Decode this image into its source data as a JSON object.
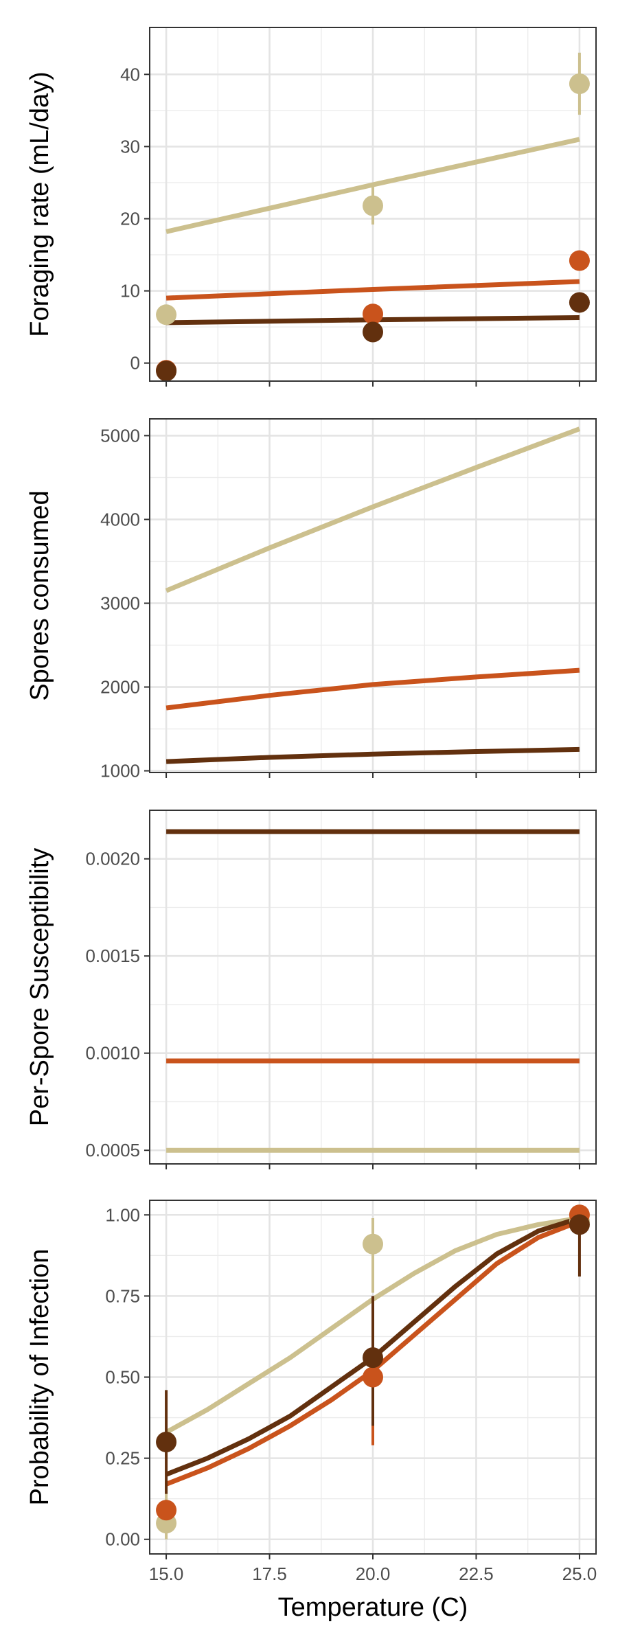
{
  "colors": {
    "light": "#CCC08E",
    "orange": "#C9531C",
    "dark": "#62300E"
  },
  "xaxis": {
    "label": "Temperature (C)",
    "lim": [
      14.6,
      25.4
    ],
    "ticks": [
      15,
      17.5,
      20,
      22.5,
      25
    ],
    "tick_labels": [
      "15.0",
      "17.5",
      "20.0",
      "22.5",
      "25.0"
    ]
  },
  "chart_data": [
    {
      "type": "line",
      "ylabel": "Foraging rate (mL/day)",
      "ylim": [
        -2.5,
        46.5
      ],
      "yticks": [
        0,
        10,
        20,
        30,
        40
      ],
      "ytick_labels": [
        "0",
        "10",
        "20",
        "30",
        "40"
      ],
      "grid": true,
      "x": [
        15,
        20,
        25
      ],
      "series": [
        {
          "color": "light",
          "line": [
            [
              15,
              18.2
            ],
            [
              20,
              24.7
            ],
            [
              25,
              31.0
            ]
          ],
          "points": [
            [
              15,
              6.7
            ],
            [
              20,
              21.8
            ],
            [
              25,
              38.7
            ]
          ],
          "errors": [
            [
              15,
              5.7,
              7.7
            ],
            [
              20,
              19.2,
              24.4
            ],
            [
              25,
              34.4,
              43.0
            ]
          ]
        },
        {
          "color": "orange",
          "line": [
            [
              15,
              9.0
            ],
            [
              20,
              10.2
            ],
            [
              25,
              11.3
            ]
          ],
          "points": [
            [
              15,
              -1.0
            ],
            [
              20,
              6.8
            ],
            [
              25,
              14.2
            ]
          ],
          "errors": []
        },
        {
          "color": "dark",
          "line": [
            [
              15,
              5.6
            ],
            [
              20,
              6.0
            ],
            [
              25,
              6.3
            ]
          ],
          "points": [
            [
              15,
              -1.1
            ],
            [
              20,
              4.3
            ],
            [
              25,
              8.4
            ]
          ],
          "errors": []
        }
      ]
    },
    {
      "type": "line",
      "ylabel": "Spores consumed",
      "ylim": [
        980,
        5200
      ],
      "yticks": [
        1000,
        2000,
        3000,
        4000,
        5000
      ],
      "ytick_labels": [
        "1000",
        "2000",
        "3000",
        "4000",
        "5000"
      ],
      "grid": true,
      "x": [
        15,
        20,
        25
      ],
      "series": [
        {
          "color": "light",
          "line": [
            [
              15,
              3150
            ],
            [
              17.5,
              3660
            ],
            [
              20,
              4150
            ],
            [
              22.5,
              4620
            ],
            [
              25,
              5080
            ]
          ],
          "points": [],
          "errors": []
        },
        {
          "color": "orange",
          "line": [
            [
              15,
              1750
            ],
            [
              17.5,
              1900
            ],
            [
              20,
              2030
            ],
            [
              22.5,
              2120
            ],
            [
              25,
              2200
            ]
          ],
          "points": [],
          "errors": []
        },
        {
          "color": "dark",
          "line": [
            [
              15,
              1110
            ],
            [
              17.5,
              1160
            ],
            [
              20,
              1200
            ],
            [
              22.5,
              1230
            ],
            [
              25,
              1255
            ]
          ],
          "points": [],
          "errors": []
        }
      ]
    },
    {
      "type": "line",
      "ylabel": "Per-Spore Susceptibility",
      "ylim": [
        0.00043,
        0.00225
      ],
      "yticks": [
        0.0005,
        0.001,
        0.0015,
        0.002
      ],
      "ytick_labels": [
        "0.0005",
        "0.0010",
        "0.0015",
        "0.0020"
      ],
      "grid": true,
      "x": [
        15,
        20,
        25
      ],
      "series": [
        {
          "color": "dark",
          "line": [
            [
              15,
              0.00214
            ],
            [
              25,
              0.00214
            ]
          ],
          "points": [],
          "errors": []
        },
        {
          "color": "orange",
          "line": [
            [
              15,
              0.00096
            ],
            [
              25,
              0.00096
            ]
          ],
          "points": [],
          "errors": []
        },
        {
          "color": "light",
          "line": [
            [
              15,
              0.0005
            ],
            [
              25,
              0.0005
            ]
          ],
          "points": [],
          "errors": []
        }
      ]
    },
    {
      "type": "line",
      "ylabel": "Probability of Infection",
      "ylim": [
        -0.045,
        1.045
      ],
      "yticks": [
        0,
        0.25,
        0.5,
        0.75,
        1
      ],
      "ytick_labels": [
        "0.00",
        "0.25",
        "0.50",
        "0.75",
        "1.00"
      ],
      "grid": true,
      "x": [
        15,
        20,
        25
      ],
      "series": [
        {
          "color": "light",
          "line": [
            [
              15,
              0.33
            ],
            [
              16,
              0.4
            ],
            [
              17,
              0.48
            ],
            [
              18,
              0.56
            ],
            [
              19,
              0.65
            ],
            [
              20,
              0.74
            ],
            [
              21,
              0.82
            ],
            [
              22,
              0.89
            ],
            [
              23,
              0.94
            ],
            [
              24,
              0.97
            ],
            [
              25,
              0.99
            ]
          ],
          "points": [
            [
              15,
              0.05
            ],
            [
              20,
              0.91
            ],
            [
              25,
              0.98
            ]
          ],
          "errors": [
            [
              15,
              0.0,
              0.18
            ],
            [
              20,
              0.76,
              0.99
            ]
          ]
        },
        {
          "color": "orange",
          "line": [
            [
              15,
              0.17
            ],
            [
              16,
              0.22
            ],
            [
              17,
              0.28
            ],
            [
              18,
              0.35
            ],
            [
              19,
              0.43
            ],
            [
              20,
              0.52
            ],
            [
              21,
              0.63
            ],
            [
              22,
              0.74
            ],
            [
              23,
              0.85
            ],
            [
              24,
              0.93
            ],
            [
              25,
              0.98
            ]
          ],
          "points": [
            [
              15,
              0.09
            ],
            [
              20,
              0.5
            ],
            [
              25,
              1.0
            ]
          ],
          "errors": [
            [
              20,
              0.29,
              0.7
            ]
          ]
        },
        {
          "color": "dark",
          "line": [
            [
              15,
              0.2
            ],
            [
              16,
              0.25
            ],
            [
              17,
              0.31
            ],
            [
              18,
              0.38
            ],
            [
              19,
              0.47
            ],
            [
              20,
              0.56
            ],
            [
              21,
              0.67
            ],
            [
              22,
              0.78
            ],
            [
              23,
              0.88
            ],
            [
              24,
              0.95
            ],
            [
              25,
              0.99
            ]
          ],
          "points": [
            [
              15,
              0.3
            ],
            [
              20,
              0.56
            ],
            [
              25,
              0.97
            ]
          ],
          "errors": [
            [
              15,
              0.14,
              0.46
            ],
            [
              20,
              0.35,
              0.75
            ],
            [
              25,
              0.81,
              1.0
            ]
          ]
        }
      ]
    }
  ]
}
